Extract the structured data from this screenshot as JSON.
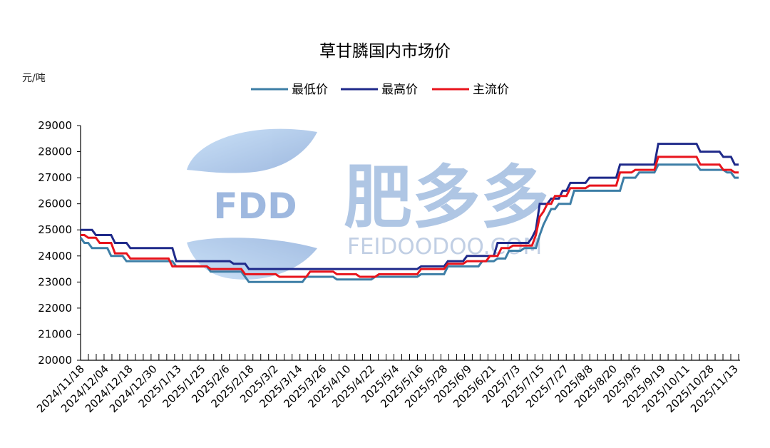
{
  "chart_data": {
    "type": "line",
    "title": "草甘膦国内市场价",
    "ylabel": "元/吨",
    "xlabel": "",
    "ylim": [
      20000,
      29000
    ],
    "yticks": [
      "29000",
      "28000",
      "27000",
      "26000",
      "25000",
      "24000",
      "23000",
      "22000",
      "21000",
      "20000"
    ],
    "x_tick_labels": [
      "2024/11/18",
      "2024/12/04",
      "2024/12/18",
      "2024/12/30",
      "2025/1/13",
      "2025/1/25",
      "2025/2/6",
      "2025/2/18",
      "2025/3/2",
      "2025/3/14",
      "2025/3/26",
      "2025/4/10",
      "2025/4/22",
      "2025/5/4",
      "2025/5/16",
      "2025/5/28",
      "2025/6/9",
      "2025/6/21",
      "2025/7/3",
      "2025/7/15",
      "2025/7/27",
      "2025/8/8",
      "2025/8/20",
      "2025/9/5",
      "2025/9/19",
      "2025/10/11",
      "2025/10/28",
      "2025/11/13"
    ],
    "legend": [
      "最低价",
      "最高价",
      "主流价"
    ],
    "series": [
      {
        "name": "最低价",
        "color": "#3d7ea6",
        "points": [
          [
            0,
            24700
          ],
          [
            1,
            24500
          ],
          [
            2,
            24500
          ],
          [
            3,
            24300
          ],
          [
            7,
            24300
          ],
          [
            8,
            24000
          ],
          [
            11,
            24000
          ],
          [
            12,
            23800
          ],
          [
            24,
            23800
          ],
          [
            25,
            23600
          ],
          [
            33,
            23600
          ],
          [
            34,
            23400
          ],
          [
            42,
            23400
          ],
          [
            43,
            23200
          ],
          [
            44,
            23000
          ],
          [
            58,
            23000
          ],
          [
            59,
            23200
          ],
          [
            66,
            23200
          ],
          [
            67,
            23100
          ],
          [
            76,
            23100
          ],
          [
            77,
            23200
          ],
          [
            88,
            23200
          ],
          [
            89,
            23300
          ],
          [
            95,
            23300
          ],
          [
            96,
            23600
          ],
          [
            104,
            23600
          ],
          [
            105,
            23800
          ],
          [
            108,
            23800
          ],
          [
            109,
            23900
          ],
          [
            111,
            23900
          ],
          [
            112,
            24200
          ],
          [
            115,
            24200
          ],
          [
            116,
            24300
          ],
          [
            119,
            24300
          ],
          [
            120,
            24800
          ],
          [
            121,
            25200
          ],
          [
            122,
            25500
          ],
          [
            123,
            25800
          ],
          [
            124,
            25800
          ],
          [
            125,
            26000
          ],
          [
            128,
            26000
          ],
          [
            129,
            26500
          ],
          [
            141,
            26500
          ],
          [
            142,
            27000
          ],
          [
            145,
            27000
          ],
          [
            146,
            27200
          ],
          [
            150,
            27200
          ],
          [
            151,
            27500
          ],
          [
            161,
            27500
          ],
          [
            162,
            27300
          ],
          [
            168,
            27300
          ],
          [
            169,
            27200
          ],
          [
            170,
            27200
          ],
          [
            171,
            27000
          ],
          [
            172,
            27000
          ]
        ]
      },
      {
        "name": "最高价",
        "color": "#1f2a8a",
        "points": [
          [
            0,
            25000
          ],
          [
            3,
            25000
          ],
          [
            4,
            24800
          ],
          [
            8,
            24800
          ],
          [
            9,
            24500
          ],
          [
            12,
            24500
          ],
          [
            13,
            24300
          ],
          [
            24,
            24300
          ],
          [
            25,
            23800
          ],
          [
            39,
            23800
          ],
          [
            40,
            23700
          ],
          [
            43,
            23700
          ],
          [
            44,
            23500
          ],
          [
            88,
            23500
          ],
          [
            89,
            23600
          ],
          [
            95,
            23600
          ],
          [
            96,
            23800
          ],
          [
            100,
            23800
          ],
          [
            101,
            24000
          ],
          [
            108,
            24000
          ],
          [
            109,
            24500
          ],
          [
            117,
            24500
          ],
          [
            118,
            24700
          ],
          [
            119,
            25000
          ],
          [
            120,
            26000
          ],
          [
            122,
            26000
          ],
          [
            123,
            26200
          ],
          [
            125,
            26200
          ],
          [
            126,
            26500
          ],
          [
            127,
            26500
          ],
          [
            128,
            26800
          ],
          [
            132,
            26800
          ],
          [
            133,
            27000
          ],
          [
            140,
            27000
          ],
          [
            141,
            27500
          ],
          [
            150,
            27500
          ],
          [
            151,
            28300
          ],
          [
            161,
            28300
          ],
          [
            162,
            28000
          ],
          [
            167,
            28000
          ],
          [
            168,
            27800
          ],
          [
            170,
            27800
          ],
          [
            171,
            27500
          ],
          [
            172,
            27500
          ]
        ]
      },
      {
        "name": "主流价",
        "color": "#e8141c",
        "points": [
          [
            0,
            24800
          ],
          [
            1,
            24800
          ],
          [
            2,
            24700
          ],
          [
            4,
            24700
          ],
          [
            5,
            24500
          ],
          [
            8,
            24500
          ],
          [
            9,
            24100
          ],
          [
            12,
            24100
          ],
          [
            13,
            23900
          ],
          [
            23,
            23900
          ],
          [
            24,
            23600
          ],
          [
            33,
            23600
          ],
          [
            34,
            23500
          ],
          [
            42,
            23500
          ],
          [
            43,
            23300
          ],
          [
            51,
            23300
          ],
          [
            52,
            23200
          ],
          [
            59,
            23200
          ],
          [
            60,
            23400
          ],
          [
            66,
            23400
          ],
          [
            67,
            23300
          ],
          [
            72,
            23300
          ],
          [
            73,
            23200
          ],
          [
            77,
            23200
          ],
          [
            78,
            23300
          ],
          [
            88,
            23300
          ],
          [
            89,
            23500
          ],
          [
            95,
            23500
          ],
          [
            96,
            23700
          ],
          [
            100,
            23700
          ],
          [
            101,
            23800
          ],
          [
            106,
            23800
          ],
          [
            107,
            24000
          ],
          [
            109,
            24000
          ],
          [
            110,
            24300
          ],
          [
            112,
            24300
          ],
          [
            113,
            24400
          ],
          [
            118,
            24400
          ],
          [
            119,
            24800
          ],
          [
            120,
            25500
          ],
          [
            121,
            25700
          ],
          [
            122,
            26000
          ],
          [
            123,
            26000
          ],
          [
            124,
            26300
          ],
          [
            127,
            26300
          ],
          [
            128,
            26600
          ],
          [
            132,
            26600
          ],
          [
            133,
            26700
          ],
          [
            140,
            26700
          ],
          [
            141,
            27200
          ],
          [
            144,
            27200
          ],
          [
            145,
            27300
          ],
          [
            150,
            27300
          ],
          [
            151,
            27800
          ],
          [
            161,
            27800
          ],
          [
            162,
            27500
          ],
          [
            167,
            27500
          ],
          [
            168,
            27300
          ],
          [
            170,
            27300
          ],
          [
            171,
            27200
          ],
          [
            172,
            27200
          ]
        ]
      }
    ]
  },
  "watermark": {
    "logo_text": "FDD",
    "brand_cn": "肥多多",
    "brand_en": "FEIDOODOO.COM"
  },
  "colors": {
    "axis": "#000000",
    "watermark_text": "#9ab4d6",
    "watermark_leaf": "#8fb8e6"
  }
}
